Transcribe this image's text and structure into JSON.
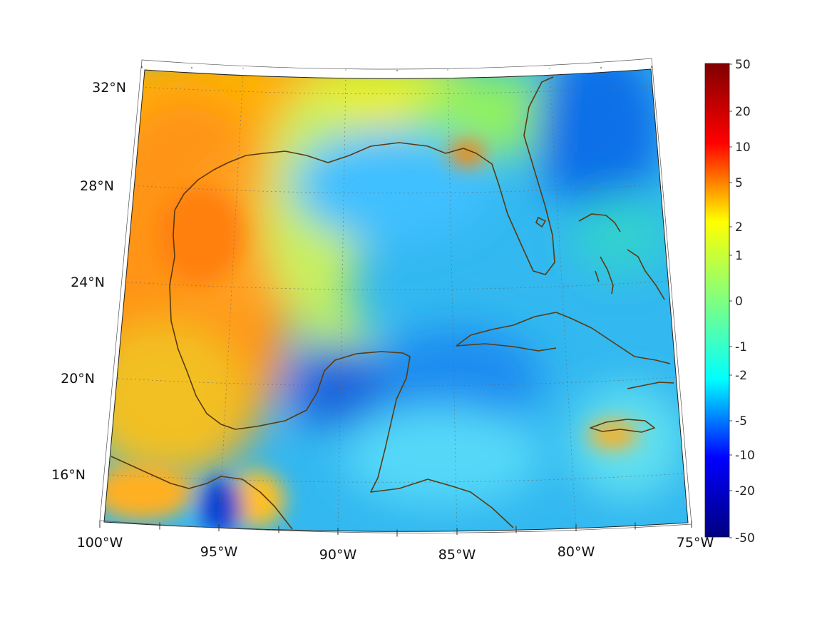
{
  "map": {
    "projection": "lambert-conformal",
    "extent": {
      "lon_min": -100,
      "lon_max": -75,
      "lat_min": 14,
      "lat_max": 33
    },
    "grid": true,
    "coastline_color": "#5a3a10",
    "lat_ticks": [
      {
        "value": 32,
        "label": "32°N"
      },
      {
        "value": 28,
        "label": "28°N"
      },
      {
        "value": 24,
        "label": "24°N"
      },
      {
        "value": 20,
        "label": "20°N"
      },
      {
        "value": 16,
        "label": "16°N"
      }
    ],
    "lon_ticks": [
      {
        "value": -100,
        "label": "100°W"
      },
      {
        "value": -95,
        "label": "95°W"
      },
      {
        "value": -90,
        "label": "90°W"
      },
      {
        "value": -85,
        "label": "85°W"
      },
      {
        "value": -80,
        "label": "80°W"
      },
      {
        "value": -75,
        "label": "75°W"
      }
    ]
  },
  "colorbar": {
    "colormap": "jet",
    "position": "right",
    "ticks": [
      "50",
      "20",
      "10",
      "5",
      "2",
      "1",
      "0",
      "-1",
      "-2",
      "-5",
      "-10",
      "-20",
      "-50"
    ],
    "colors": [
      "#800000",
      "#ff0000",
      "#ffff00",
      "#80ff80",
      "#00ffff",
      "#0000ff",
      "#000080"
    ]
  }
}
